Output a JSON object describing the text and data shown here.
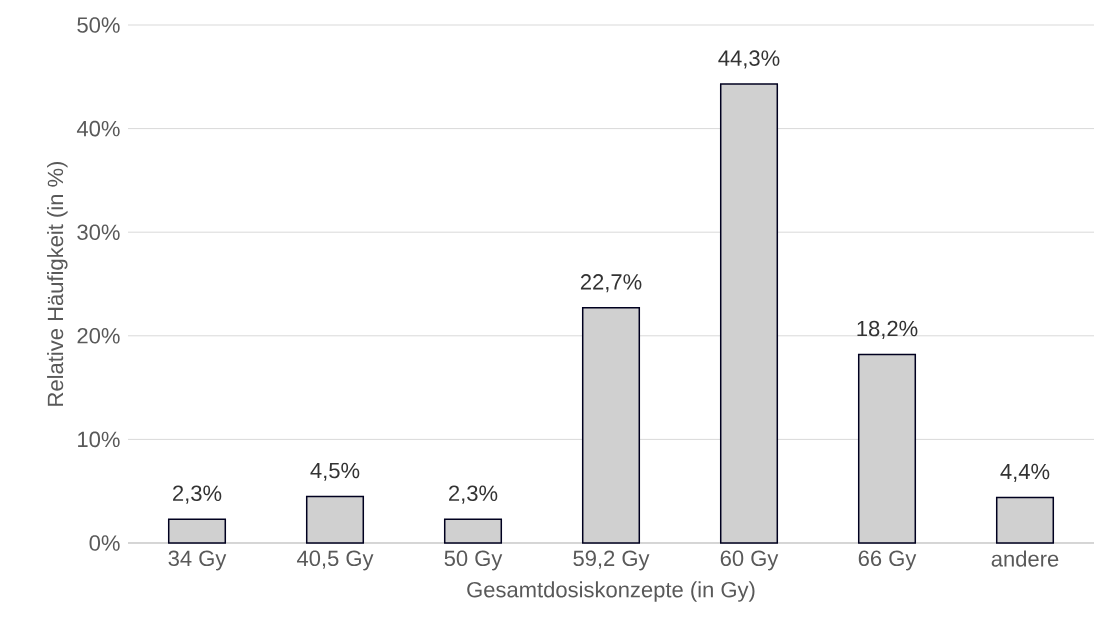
{
  "chart_data": {
    "type": "bar",
    "xlabel": "Gesamtdosiskonzepte (in Gy)",
    "ylabel": "Relative Häufigkeit (in %)",
    "categories": [
      "34 Gy",
      "40,5 Gy",
      "50 Gy",
      "59,2 Gy",
      "60 Gy",
      "66 Gy",
      "andere"
    ],
    "values": [
      2.3,
      4.5,
      2.3,
      22.7,
      44.3,
      18.2,
      4.4
    ],
    "value_labels": [
      "2,3%",
      "4,5%",
      "2,3%",
      "22,7%",
      "44,3%",
      "18,2%",
      "4,4%"
    ],
    "color": "#d0d0d0",
    "ylim": [
      0,
      50
    ],
    "yticks": [
      {
        "value": 0,
        "label": "0%"
      },
      {
        "value": 10,
        "label": "10%"
      },
      {
        "value": 20,
        "label": "20%"
      },
      {
        "value": 30,
        "label": "30%"
      },
      {
        "value": 40,
        "label": "40%"
      },
      {
        "value": 50,
        "label": "50%"
      }
    ],
    "grid": "y"
  }
}
